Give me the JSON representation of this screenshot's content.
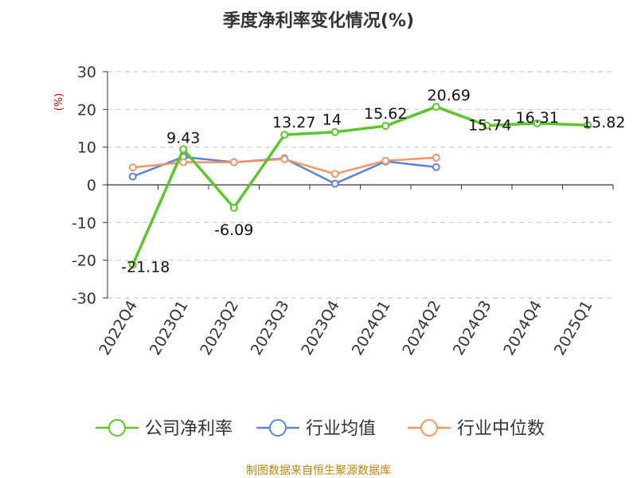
{
  "chart_data": {
    "type": "line",
    "title": "季度净利率变化情况(%)",
    "ylabel": "(%)",
    "xlabel": "",
    "categories": [
      "2022Q4",
      "2023Q1",
      "2023Q2",
      "2023Q3",
      "2023Q4",
      "2024Q1",
      "2024Q2",
      "2024Q3",
      "2024Q4",
      "2025Q1"
    ],
    "ylim": [
      -30,
      30
    ],
    "yticks": [
      30,
      20,
      10,
      0,
      -10,
      -20,
      -30
    ],
    "grid": true,
    "legend_position": "bottom",
    "series": [
      {
        "name": "公司净利率",
        "color": "#5cc52a",
        "values": [
          -21.18,
          9.43,
          -6.09,
          13.27,
          14,
          15.62,
          20.69,
          15.74,
          16.31,
          15.82
        ],
        "labels": [
          "-21.18",
          "9.43",
          "-6.09",
          "13.27",
          "14",
          "15.62",
          "20.69",
          "15.74",
          "16.31",
          "15.82"
        ]
      },
      {
        "name": "行业均值",
        "color": "#5b84d9",
        "values": [
          2.2,
          7.4,
          6.0,
          7.0,
          0.3,
          6.2,
          4.7,
          null,
          null,
          null
        ]
      },
      {
        "name": "行业中位数",
        "color": "#f59563",
        "values": [
          4.6,
          6.0,
          6.0,
          6.8,
          2.9,
          6.4,
          7.2,
          null,
          null,
          null
        ]
      }
    ]
  },
  "source": "制图数据来自恒生聚源数据库"
}
